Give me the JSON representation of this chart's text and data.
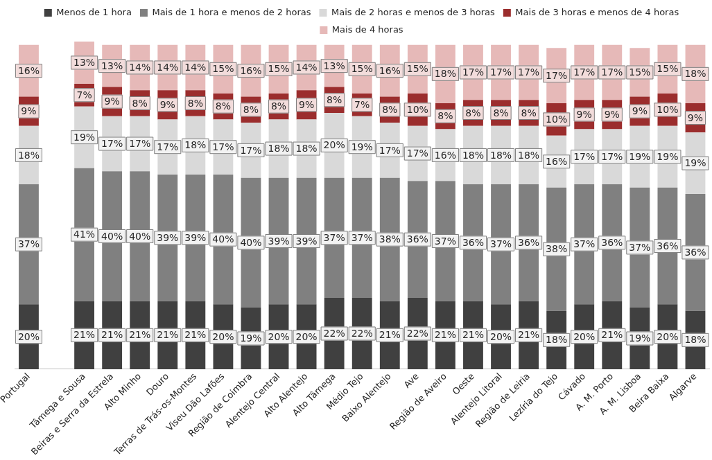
{
  "chart_data": {
    "type": "bar",
    "stacked": true,
    "legend": "top",
    "ylim": [
      0,
      101
    ],
    "tick_labels": "x",
    "categories": [
      "Portugal",
      null,
      "Tâmega e Sousa",
      "Beiras e Serra da Estrela",
      "Alto Minho",
      "Douro",
      "Terras de Trás-os-Montes",
      "Viseu Dão Lafões",
      "Região de Coimbra",
      "Alentejo Central",
      "Alto Alentejo",
      "Alto Tâmega",
      "Médio Tejo",
      "Baixo Alentejo",
      "Ave",
      "Região de Aveiro",
      "Oeste",
      "Alentejo Litoral",
      "Região de Leiria",
      "Lezíria do Tejo",
      "Cávado",
      "A. M. Porto",
      "A. M. Lisboa",
      "Beira Baixa",
      "Algarve"
    ],
    "series": [
      {
        "name": "Menos de 1 hora",
        "color": "#404040",
        "values": [
          20,
          null,
          21,
          21,
          21,
          21,
          21,
          20,
          19,
          20,
          20,
          22,
          22,
          21,
          22,
          21,
          21,
          20,
          21,
          18,
          20,
          21,
          19,
          20,
          18
        ],
        "value_labels": [
          "20%",
          null,
          "21%",
          "21%",
          "21%",
          "21%",
          "21%",
          "20%",
          "19%",
          "20%",
          "20%",
          "22%",
          "22%",
          "21%",
          "22%",
          "21%",
          "21%",
          "20%",
          "21%",
          "18%",
          "20%",
          "21%",
          "19%",
          "20%",
          "18%"
        ]
      },
      {
        "name": "Mais de 1 hora e menos de 2 horas",
        "color": "#808080",
        "values": [
          37,
          null,
          41,
          40,
          40,
          39,
          39,
          40,
          40,
          39,
          39,
          37,
          37,
          38,
          36,
          37,
          36,
          37,
          36,
          38,
          37,
          36,
          37,
          36,
          36
        ],
        "value_labels": [
          "37%",
          null,
          "41%",
          "40%",
          "40%",
          "39%",
          "39%",
          "40%",
          "40%",
          "39%",
          "39%",
          "37%",
          "37%",
          "38%",
          "36%",
          "37%",
          "36%",
          "37%",
          "36%",
          "38%",
          "37%",
          "36%",
          "37%",
          "36%",
          "36%"
        ]
      },
      {
        "name": "Mais de 2 horas e menos de 3 horas",
        "color": "#d9d9d9",
        "values": [
          18,
          null,
          19,
          17,
          17,
          17,
          18,
          17,
          17,
          18,
          18,
          20,
          19,
          17,
          17,
          16,
          18,
          18,
          18,
          16,
          17,
          17,
          19,
          19,
          19
        ],
        "value_labels": [
          "18%",
          null,
          "19%",
          "17%",
          "17%",
          "17%",
          "18%",
          "17%",
          "17%",
          "18%",
          "18%",
          "20%",
          "19%",
          "17%",
          "17%",
          "16%",
          "18%",
          "18%",
          "18%",
          "16%",
          "17%",
          "17%",
          "19%",
          "19%",
          "19%"
        ]
      },
      {
        "name": "Mais de 3 horas e menos de 4 horas",
        "color": "#9b2d2d",
        "values": [
          9,
          null,
          7,
          9,
          8,
          9,
          8,
          8,
          8,
          8,
          9,
          8,
          7,
          8,
          10,
          8,
          8,
          8,
          8,
          10,
          9,
          9,
          9,
          10,
          9
        ],
        "value_labels": [
          "9%",
          null,
          "7%",
          "9%",
          "8%",
          "9%",
          "8%",
          "8%",
          "8%",
          "8%",
          "9%",
          "8%",
          "7%",
          "8%",
          "10%",
          "8%",
          "8%",
          "8%",
          "8%",
          "10%",
          "9%",
          "9%",
          "9%",
          "10%",
          "9%"
        ]
      },
      {
        "name": "Mais de 4 horas",
        "color": "#e6b9b8",
        "values": [
          16,
          null,
          13,
          13,
          14,
          14,
          14,
          15,
          16,
          15,
          14,
          13,
          15,
          16,
          15,
          18,
          17,
          17,
          17,
          17,
          17,
          17,
          15,
          15,
          18
        ],
        "value_labels": [
          "16%",
          null,
          "13%",
          "13%",
          "14%",
          "14%",
          "14%",
          "15%",
          "16%",
          "15%",
          "14%",
          "13%",
          "15%",
          "16%",
          "15%",
          "18%",
          "17%",
          "17%",
          "17%",
          "17%",
          "17%",
          "17%",
          "15%",
          "15%",
          "18%"
        ]
      }
    ]
  }
}
